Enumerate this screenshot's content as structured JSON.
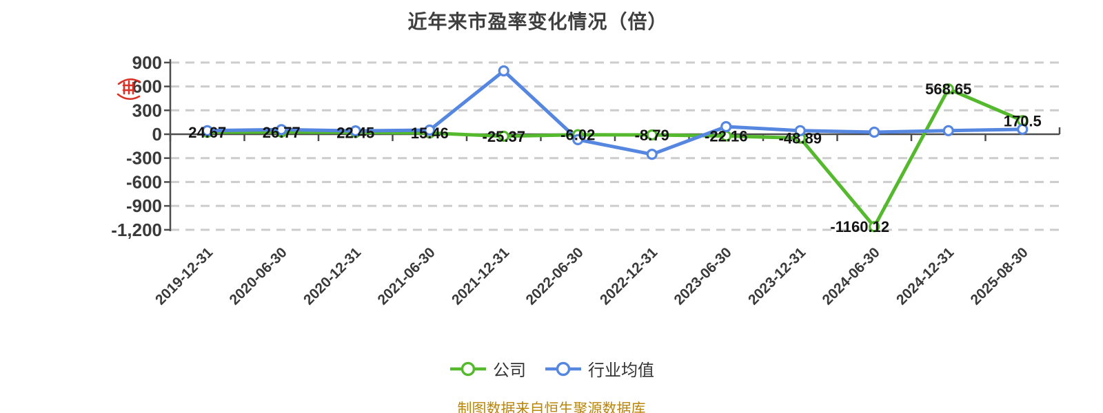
{
  "source_note": "制图数据来自恒生聚源数据库",
  "seal_icon": "red-seal-stamp",
  "colors": {
    "company": "#55b92d",
    "industry": "#5586e0",
    "grid": "#cccccc",
    "axis": "#4c4c4c",
    "data_label": "#141414",
    "tick_text": "#3a3a3a",
    "title_text": "#3f3f3f",
    "source_text": "#b8860b",
    "seal": "#d9281c",
    "marker_fill": "#ffffff"
  },
  "chart_data": {
    "type": "line",
    "title": "近年来市盈率变化情况（倍）",
    "xlabel": "",
    "ylabel": "",
    "grid": "horizontal-dashed",
    "legend_position": "bottom",
    "ylim": [
      -1200,
      900
    ],
    "ytick_values": [
      900,
      600,
      300,
      0,
      -300,
      -600,
      -900,
      -1200
    ],
    "ytick_labels": [
      "900",
      "600",
      "300",
      "0",
      "-300",
      "-600",
      "-900",
      "-1,200"
    ],
    "categories": [
      "2019-12-31",
      "2020-06-30",
      "2020-12-31",
      "2021-06-30",
      "2021-12-31",
      "2022-06-30",
      "2022-12-31",
      "2023-06-30",
      "2023-12-31",
      "2024-06-30",
      "2024-12-31",
      "2025-08-30"
    ],
    "series": [
      {
        "name": "公司",
        "color": "#55b92d",
        "show_labels": true,
        "values": [
          24.67,
          26.77,
          22.45,
          15.46,
          -25.37,
          -6.02,
          -8.79,
          -22.16,
          -48.89,
          -1160.12,
          568.65,
          170.5
        ],
        "labels": [
          "24.67",
          "26.77",
          "22.45",
          "15.46",
          "-25.37",
          "-6.02",
          "-8.79",
          "-22.16",
          "-48.89",
          "-1160.12",
          "568.65",
          "170.5"
        ]
      },
      {
        "name": "行业均值",
        "color": "#5586e0",
        "show_labels": false,
        "values": [
          45,
          58,
          42,
          52,
          795,
          -68,
          -252,
          95,
          45,
          26,
          45,
          62
        ],
        "labels": []
      }
    ]
  }
}
